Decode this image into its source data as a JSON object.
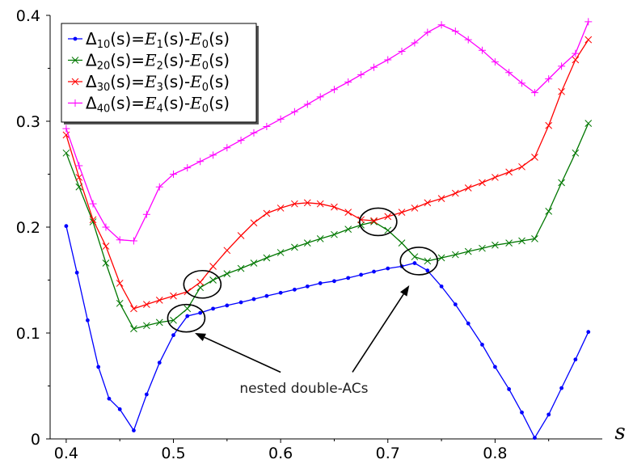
{
  "chart_data": {
    "type": "line",
    "xlabel": "s",
    "xlim": [
      0.385,
      0.9
    ],
    "ylim": [
      0,
      0.4
    ],
    "xticks": [
      "0.4",
      "0.5",
      "0.6",
      "0.7",
      "0.8"
    ],
    "yticks": [
      "0",
      "0.1",
      "0.2",
      "0.3",
      "0.4"
    ],
    "legend_position": "top-left",
    "series": [
      {
        "name": "Δ10(s)=E1(s)-E0(s)",
        "name_parts": {
          "delta_sub": "10",
          "e1": "E",
          "e1_sub": "1",
          "e2": "E",
          "e2_sub": "0"
        },
        "color": "#0000ff",
        "marker": "dot",
        "points": [
          [
            0.4,
            0.201
          ],
          [
            0.41,
            0.157
          ],
          [
            0.42,
            0.112
          ],
          [
            0.43,
            0.068
          ],
          [
            0.44,
            0.038
          ],
          [
            0.45,
            0.028
          ],
          [
            0.463,
            0.008
          ],
          [
            0.475,
            0.042
          ],
          [
            0.487,
            0.072
          ],
          [
            0.5,
            0.098
          ],
          [
            0.513,
            0.116
          ],
          [
            0.525,
            0.119
          ],
          [
            0.537,
            0.123
          ],
          [
            0.55,
            0.126
          ],
          [
            0.563,
            0.129
          ],
          [
            0.575,
            0.132
          ],
          [
            0.587,
            0.135
          ],
          [
            0.6,
            0.138
          ],
          [
            0.613,
            0.141
          ],
          [
            0.625,
            0.144
          ],
          [
            0.637,
            0.147
          ],
          [
            0.65,
            0.149
          ],
          [
            0.663,
            0.152
          ],
          [
            0.675,
            0.155
          ],
          [
            0.687,
            0.158
          ],
          [
            0.7,
            0.161
          ],
          [
            0.713,
            0.163
          ],
          [
            0.725,
            0.166
          ],
          [
            0.737,
            0.159
          ],
          [
            0.75,
            0.144
          ],
          [
            0.763,
            0.127
          ],
          [
            0.775,
            0.109
          ],
          [
            0.788,
            0.089
          ],
          [
            0.8,
            0.068
          ],
          [
            0.813,
            0.047
          ],
          [
            0.825,
            0.025
          ],
          [
            0.837,
            0.001
          ],
          [
            0.85,
            0.023
          ],
          [
            0.862,
            0.048
          ],
          [
            0.875,
            0.075
          ],
          [
            0.887,
            0.101
          ]
        ]
      },
      {
        "name": "Δ20(s)=E2(s)-E0(s)",
        "name_parts": {
          "delta_sub": "20",
          "e1": "E",
          "e1_sub": "2",
          "e2": "E",
          "e2_sub": "0"
        },
        "color": "#007700",
        "marker": "x",
        "points": [
          [
            0.4,
            0.27
          ],
          [
            0.412,
            0.238
          ],
          [
            0.425,
            0.205
          ],
          [
            0.437,
            0.166
          ],
          [
            0.45,
            0.128
          ],
          [
            0.463,
            0.104
          ],
          [
            0.475,
            0.107
          ],
          [
            0.487,
            0.11
          ],
          [
            0.5,
            0.112
          ],
          [
            0.513,
            0.123
          ],
          [
            0.525,
            0.143
          ],
          [
            0.537,
            0.15
          ],
          [
            0.55,
            0.156
          ],
          [
            0.563,
            0.161
          ],
          [
            0.575,
            0.166
          ],
          [
            0.587,
            0.171
          ],
          [
            0.6,
            0.176
          ],
          [
            0.613,
            0.181
          ],
          [
            0.625,
            0.185
          ],
          [
            0.637,
            0.189
          ],
          [
            0.65,
            0.193
          ],
          [
            0.663,
            0.198
          ],
          [
            0.675,
            0.202
          ],
          [
            0.687,
            0.205
          ],
          [
            0.7,
            0.197
          ],
          [
            0.713,
            0.185
          ],
          [
            0.725,
            0.172
          ],
          [
            0.737,
            0.168
          ],
          [
            0.75,
            0.171
          ],
          [
            0.763,
            0.174
          ],
          [
            0.775,
            0.177
          ],
          [
            0.788,
            0.18
          ],
          [
            0.8,
            0.183
          ],
          [
            0.813,
            0.185
          ],
          [
            0.825,
            0.187
          ],
          [
            0.837,
            0.189
          ],
          [
            0.85,
            0.215
          ],
          [
            0.862,
            0.242
          ],
          [
            0.875,
            0.27
          ],
          [
            0.887,
            0.298
          ]
        ]
      },
      {
        "name": "Δ30(s)=E3(s)-E0(s)",
        "name_parts": {
          "delta_sub": "30",
          "e1": "E",
          "e1_sub": "3",
          "e2": "E",
          "e2_sub": "0"
        },
        "color": "#ff0000",
        "marker": "x",
        "points": [
          [
            0.4,
            0.287
          ],
          [
            0.412,
            0.247
          ],
          [
            0.425,
            0.207
          ],
          [
            0.437,
            0.182
          ],
          [
            0.45,
            0.147
          ],
          [
            0.463,
            0.123
          ],
          [
            0.475,
            0.127
          ],
          [
            0.487,
            0.131
          ],
          [
            0.5,
            0.135
          ],
          [
            0.513,
            0.139
          ],
          [
            0.525,
            0.148
          ],
          [
            0.537,
            0.163
          ],
          [
            0.55,
            0.178
          ],
          [
            0.563,
            0.192
          ],
          [
            0.575,
            0.204
          ],
          [
            0.587,
            0.213
          ],
          [
            0.6,
            0.218
          ],
          [
            0.613,
            0.222
          ],
          [
            0.625,
            0.223
          ],
          [
            0.637,
            0.222
          ],
          [
            0.65,
            0.219
          ],
          [
            0.663,
            0.214
          ],
          [
            0.675,
            0.207
          ],
          [
            0.687,
            0.206
          ],
          [
            0.7,
            0.21
          ],
          [
            0.713,
            0.214
          ],
          [
            0.725,
            0.218
          ],
          [
            0.737,
            0.223
          ],
          [
            0.75,
            0.227
          ],
          [
            0.763,
            0.232
          ],
          [
            0.775,
            0.237
          ],
          [
            0.788,
            0.242
          ],
          [
            0.8,
            0.247
          ],
          [
            0.813,
            0.252
          ],
          [
            0.825,
            0.257
          ],
          [
            0.837,
            0.266
          ],
          [
            0.85,
            0.296
          ],
          [
            0.862,
            0.328
          ],
          [
            0.875,
            0.358
          ],
          [
            0.887,
            0.377
          ]
        ]
      },
      {
        "name": "Δ40(s)=E4(s)-E0(s)",
        "name_parts": {
          "delta_sub": "40",
          "e1": "E",
          "e1_sub": "4",
          "e2": "E",
          "e2_sub": "0"
        },
        "color": "#ff00ff",
        "marker": "plus",
        "points": [
          [
            0.4,
            0.293
          ],
          [
            0.412,
            0.258
          ],
          [
            0.425,
            0.222
          ],
          [
            0.437,
            0.2
          ],
          [
            0.45,
            0.188
          ],
          [
            0.463,
            0.187
          ],
          [
            0.475,
            0.212
          ],
          [
            0.487,
            0.238
          ],
          [
            0.5,
            0.25
          ],
          [
            0.513,
            0.256
          ],
          [
            0.525,
            0.262
          ],
          [
            0.537,
            0.268
          ],
          [
            0.55,
            0.275
          ],
          [
            0.563,
            0.282
          ],
          [
            0.575,
            0.289
          ],
          [
            0.587,
            0.295
          ],
          [
            0.6,
            0.302
          ],
          [
            0.613,
            0.309
          ],
          [
            0.625,
            0.316
          ],
          [
            0.637,
            0.323
          ],
          [
            0.65,
            0.33
          ],
          [
            0.663,
            0.337
          ],
          [
            0.675,
            0.344
          ],
          [
            0.687,
            0.351
          ],
          [
            0.7,
            0.358
          ],
          [
            0.713,
            0.366
          ],
          [
            0.725,
            0.374
          ],
          [
            0.737,
            0.384
          ],
          [
            0.75,
            0.391
          ],
          [
            0.763,
            0.385
          ],
          [
            0.775,
            0.377
          ],
          [
            0.788,
            0.367
          ],
          [
            0.8,
            0.356
          ],
          [
            0.813,
            0.346
          ],
          [
            0.825,
            0.336
          ],
          [
            0.837,
            0.327
          ],
          [
            0.85,
            0.34
          ],
          [
            0.862,
            0.352
          ],
          [
            0.875,
            0.364
          ],
          [
            0.887,
            0.394
          ]
        ]
      }
    ],
    "annotation": {
      "text": "nested double-ACs",
      "text_at": [
        0.633,
        0.048
      ],
      "arrow_tips": [
        [
          0.52,
          0.1
        ],
        [
          0.72,
          0.145
        ]
      ],
      "arrow_tails": [
        [
          0.6,
          0.063
        ],
        [
          0.667,
          0.063
        ]
      ],
      "circles": [
        [
          0.512,
          0.114
        ],
        [
          0.527,
          0.146
        ],
        [
          0.691,
          0.205
        ],
        [
          0.729,
          0.168
        ]
      ]
    }
  }
}
